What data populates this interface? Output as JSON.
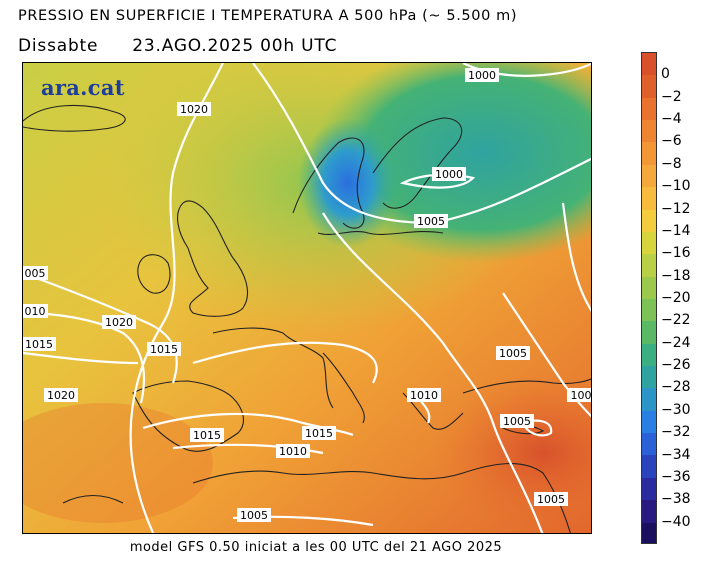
{
  "header": {
    "title": "PRESSIO EN SUPERFICIE I TEMPERATURA A 500 hPa (~ 5.500 m)",
    "day": "Dissabte",
    "date": "23.AGO.2025 00h UTC"
  },
  "map": {
    "logo": "ara.cat",
    "isobars": [
      {
        "label": "1000",
        "id": "a"
      },
      {
        "label": "1020",
        "id": "b"
      },
      {
        "label": "1000",
        "id": "c"
      },
      {
        "label": "1005",
        "id": "d"
      },
      {
        "label": "005",
        "id": "e"
      },
      {
        "label": "010",
        "id": "f"
      },
      {
        "label": "1020",
        "id": "g"
      },
      {
        "label": "1015",
        "id": "h"
      },
      {
        "label": "1015",
        "id": "i"
      },
      {
        "label": "1005",
        "id": "j"
      },
      {
        "label": "1020",
        "id": "k"
      },
      {
        "label": "1010",
        "id": "l"
      },
      {
        "label": "1015",
        "id": "m"
      },
      {
        "label": "1015",
        "id": "n"
      },
      {
        "label": "1010",
        "id": "o"
      },
      {
        "label": "1005",
        "id": "p"
      },
      {
        "label": "100",
        "id": "q"
      },
      {
        "label": "1005",
        "id": "r"
      },
      {
        "label": "1005",
        "id": "s"
      }
    ]
  },
  "colorbar": {
    "labels": [
      "0",
      "−2",
      "−4",
      "−6",
      "−8",
      "−10",
      "−12",
      "−14",
      "−16",
      "−18",
      "−20",
      "−22",
      "−24",
      "−26",
      "−28",
      "−30",
      "−32",
      "−34",
      "−36",
      "−38",
      "−40"
    ],
    "colors": [
      "#d8512b",
      "#e0602c",
      "#e8722e",
      "#ee8532",
      "#f29636",
      "#f5a93a",
      "#f7bc3d",
      "#f3cd3e",
      "#d8d43e",
      "#b9cf45",
      "#9ac94d",
      "#7cc257",
      "#5bb965",
      "#3bae82",
      "#2fa3a0",
      "#2b95c8",
      "#2a7fe2",
      "#2a61d6",
      "#2a44bd",
      "#2b2ba0",
      "#281a80",
      "#1a0f5e"
    ]
  },
  "footer": "model GFS 0.50 iniciat a les 00 UTC del 21 AGO 2025"
}
